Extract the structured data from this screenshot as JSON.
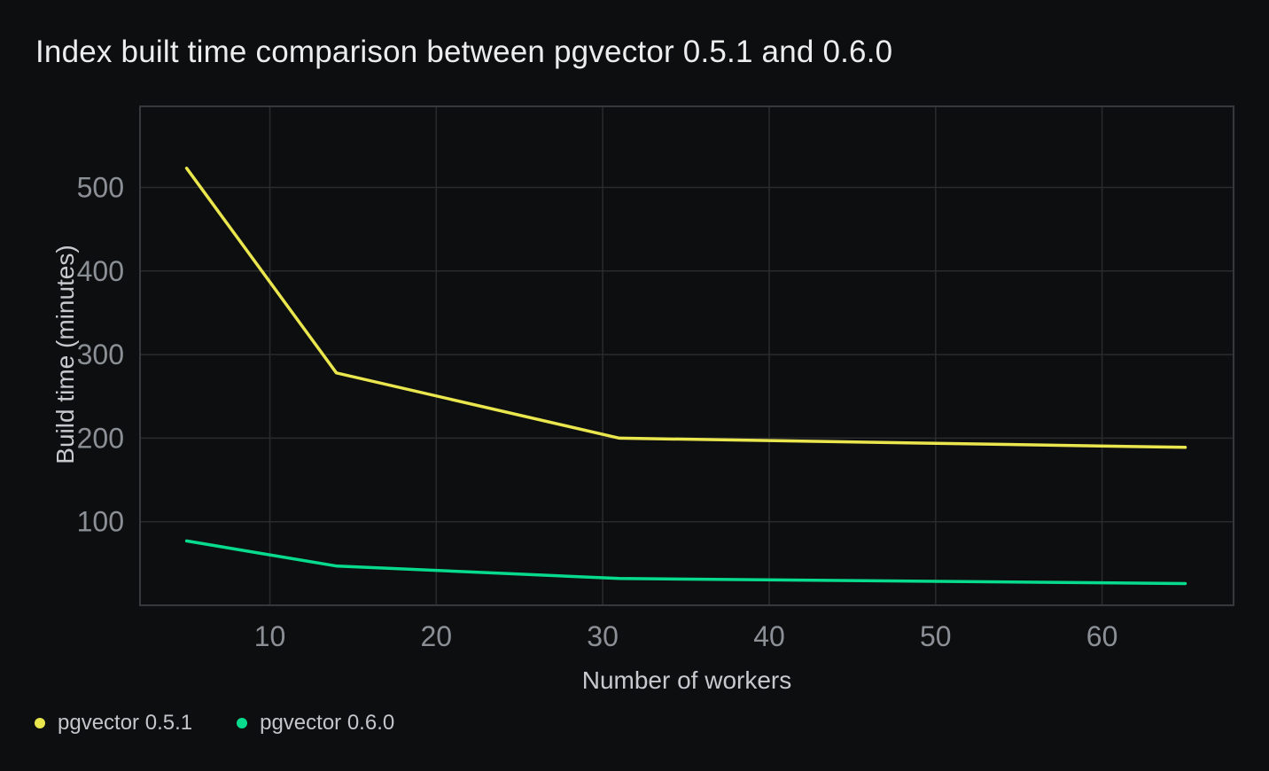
{
  "chart_data": {
    "type": "line",
    "title": "Index built time comparison between pgvector 0.5.1 and 0.6.0",
    "xlabel": "Number of workers",
    "ylabel": "Build time (minutes)",
    "xlim": [
      2.2,
      67.9
    ],
    "ylim": [
      0,
      597
    ],
    "xticks": [
      10,
      20,
      30,
      40,
      50,
      60
    ],
    "yticks": [
      100,
      200,
      300,
      400,
      500
    ],
    "grid": true,
    "legend_position": "bottom-left",
    "series": [
      {
        "name": "pgvector 0.5.1",
        "color": "#EAE64E",
        "points": [
          [
            5,
            523
          ],
          [
            14,
            278
          ],
          [
            31,
            200
          ],
          [
            65,
            189
          ]
        ]
      },
      {
        "name": "pgvector 0.6.0",
        "color": "#07DB8D",
        "points": [
          [
            5,
            77
          ],
          [
            14,
            47
          ],
          [
            31,
            32
          ],
          [
            65,
            26
          ]
        ]
      }
    ],
    "colors": {
      "background": "#0d0e0f",
      "gridline": "#292b2d",
      "plot_border": "#36393b",
      "tick_text": "#8b9096",
      "axis_title_text": "#c6cace",
      "chart_title_text": "#ededee",
      "legend_text": "#c2c6cb"
    }
  }
}
